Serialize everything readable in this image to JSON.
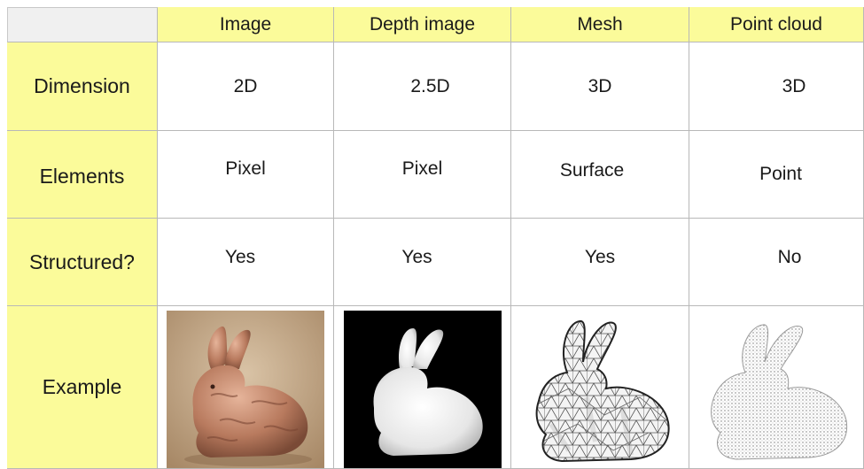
{
  "header": {
    "columns": [
      "Image",
      "Depth image",
      "Mesh",
      "Point cloud"
    ]
  },
  "rows": [
    {
      "label": "Dimension",
      "values": [
        "2D",
        "2.5D",
        "3D",
        "3D"
      ]
    },
    {
      "label": "Elements",
      "values": [
        "Pixel",
        "Pixel",
        "Surface",
        "Point"
      ]
    },
    {
      "label": "Structured?",
      "values": [
        "Yes",
        "Yes",
        "Yes",
        "No"
      ]
    },
    {
      "label": "Example"
    }
  ],
  "examples": [
    {
      "icon": "bunny-photo-icon"
    },
    {
      "icon": "bunny-depth-icon"
    },
    {
      "icon": "bunny-mesh-icon"
    },
    {
      "icon": "bunny-pointcloud-icon"
    }
  ],
  "colors": {
    "header_bg": "#fbfb9a",
    "corner_bg": "#f0f0f0",
    "grid": "#b8b8b8"
  }
}
